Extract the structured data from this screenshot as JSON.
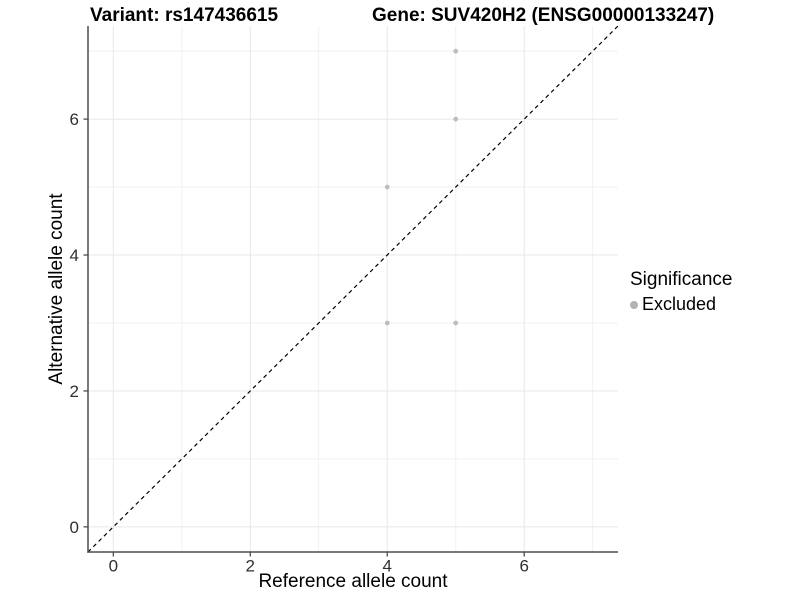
{
  "header": {
    "variant_title": "Variant: rs147436615",
    "gene_title": "Gene: SUV420H2 (ENSG00000133247)"
  },
  "chart_data": {
    "type": "scatter",
    "title": "Variant: rs147436615  /  Gene: SUV420H2 (ENSG00000133247)",
    "xlabel": "Reference allele count",
    "ylabel": "Alternative allele count",
    "xlim": [
      -0.37,
      7.37
    ],
    "ylim": [
      -0.37,
      7.37
    ],
    "x_ticks": [
      0,
      2,
      4,
      6
    ],
    "y_ticks": [
      0,
      2,
      4,
      6
    ],
    "grid_major": [
      0,
      2,
      4,
      6
    ],
    "grid_minor": [
      1,
      3,
      5,
      7
    ],
    "series": [
      {
        "name": "Excluded",
        "color": "#bdbdbd",
        "points": [
          {
            "x": 4,
            "y": 3
          },
          {
            "x": 5,
            "y": 3
          },
          {
            "x": 4,
            "y": 5
          },
          {
            "x": 5,
            "y": 6
          },
          {
            "x": 5,
            "y": 7
          }
        ]
      }
    ],
    "reference_line": {
      "type": "identity",
      "slope": 1,
      "intercept": 0,
      "style": "dashed",
      "color": "#000000"
    },
    "legend": {
      "title": "Significance",
      "position": "right",
      "entries": [
        {
          "label": "Excluded",
          "color": "#b3b3b3"
        }
      ]
    }
  },
  "style": {
    "background": "#ffffff",
    "grid_major_color": "#e7e7e7",
    "grid_minor_color": "#f1f1f1",
    "axis_line_color": "#4d4d4d",
    "tick_label_color": "#303030",
    "point_color": "#bdbdbd"
  }
}
